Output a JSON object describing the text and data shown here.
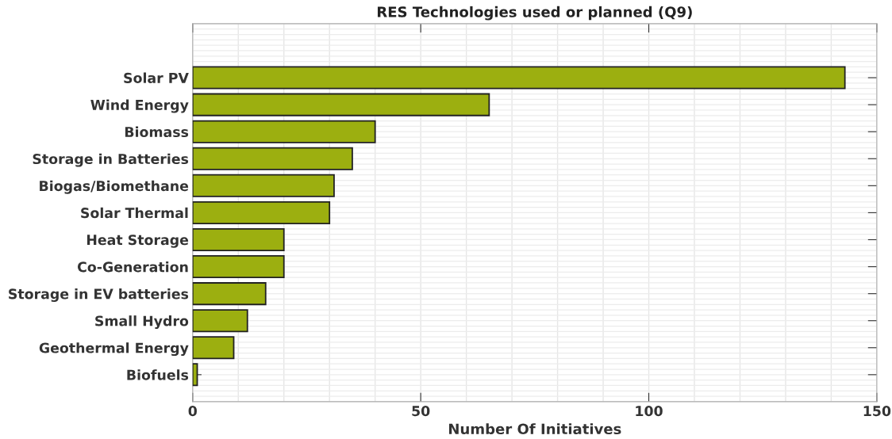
{
  "chart_data": {
    "type": "bar",
    "orientation": "horizontal",
    "title": "RES Technologies used or planned (Q9)",
    "xlabel": "Number Of Initiatives",
    "categories": [
      "Solar PV",
      "Wind Energy",
      "Biomass",
      "Storage in Batteries",
      "Biogas/Biomethane",
      "Solar Thermal",
      "Heat Storage",
      "Co-Generation",
      "Storage in EV batteries",
      "Small Hydro",
      "Geothermal Energy",
      "Biofuels"
    ],
    "values": [
      143,
      65,
      40,
      35,
      31,
      30,
      20,
      20,
      16,
      12,
      9,
      1
    ],
    "color": "#9caf10",
    "xlim": [
      0,
      150
    ],
    "xticks": [
      0,
      50,
      100,
      150
    ],
    "grid": true
  }
}
